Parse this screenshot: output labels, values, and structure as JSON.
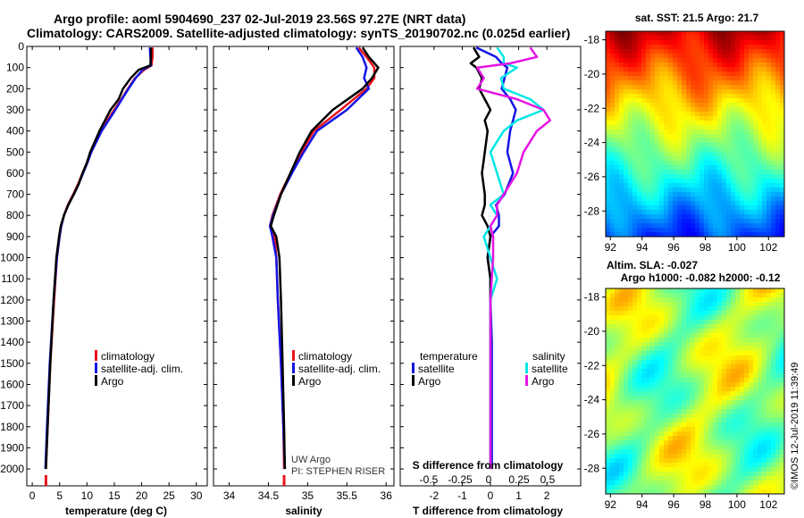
{
  "title_line1": "Argo profile: aoml 5904690_237 02-Jul-2019 23.56S 97.27E (NRT data)",
  "title_line2": "Climatology: CARS2009. Satellite-adjusted climatology: synTS_20190702.nc (0.025d earlier)",
  "sst_title": "sat. SST: 21.5 Argo: 21.7",
  "sla_title1": "Altim. SLA: -0.027",
  "sla_title2": "Argo h1000: -0.082 h2000: -0.12",
  "watermark": "©IMOS 12-Jul-2019 11:39:49",
  "credit1": "UW Argo",
  "credit2": "PI: STEPHEN RISER",
  "colors": {
    "climatology": "#e8141e",
    "satellite": "#1414e6",
    "argo": "#000000",
    "sat_s": "#00e6e6",
    "argo_s": "#e614e6"
  },
  "chart_data": [
    {
      "type": "line",
      "xlabel": "temperature (deg C)",
      "xlim": [
        -1,
        32
      ],
      "ylim": [
        2080,
        0
      ],
      "xticks": [
        "0",
        "5",
        "10",
        "15",
        "20",
        "25",
        "30"
      ],
      "xtick_values": [
        0,
        5,
        10,
        15,
        20,
        25,
        30
      ],
      "yticks": [
        "0",
        "100",
        "200",
        "300",
        "400",
        "500",
        "600",
        "700",
        "800",
        "900",
        "1000",
        "1100",
        "1200",
        "1300",
        "1400",
        "1500",
        "1600",
        "1700",
        "1800",
        "1900",
        "2000"
      ],
      "legend": [
        "climatology",
        "satellite-adj. clim.",
        "Argo"
      ],
      "depth": [
        5,
        50,
        90,
        110,
        150,
        200,
        250,
        300,
        400,
        500,
        550,
        600,
        650,
        700,
        750,
        800,
        850,
        900,
        1000,
        1200,
        1500,
        1800,
        2000
      ],
      "series": [
        {
          "name": "climatology",
          "values": [
            22.0,
            22.0,
            21.8,
            20.5,
            18.8,
            17.5,
            16.3,
            15.0,
            12.5,
            10.7,
            10.0,
            9.2,
            8.4,
            7.5,
            6.5,
            5.8,
            5.3,
            5.0,
            4.5,
            4.0,
            3.3,
            2.8,
            2.5
          ]
        },
        {
          "name": "satellite-adj. clim.",
          "values": [
            21.5,
            21.6,
            21.7,
            20.2,
            18.9,
            17.6,
            16.4,
            15.2,
            12.7,
            10.8,
            10.1,
            9.3,
            8.5,
            7.6,
            6.6,
            5.8,
            5.3,
            5.0,
            4.5,
            3.9,
            3.2,
            2.7,
            2.4
          ]
        },
        {
          "name": "Argo",
          "values": [
            21.7,
            21.7,
            21.6,
            19.5,
            18.0,
            16.6,
            15.8,
            14.3,
            12.3,
            10.6,
            10.0,
            9.2,
            8.5,
            7.6,
            6.6,
            5.8,
            5.2,
            4.9,
            4.4,
            3.9,
            3.3,
            2.8,
            2.5
          ]
        }
      ]
    },
    {
      "type": "line",
      "xlabel": "salinity",
      "xlim": [
        33.8,
        36.1
      ],
      "ylim": [
        2080,
        0
      ],
      "xticks": [
        "34",
        "34.5",
        "35",
        "35.5",
        "36"
      ],
      "xtick_values": [
        34,
        34.5,
        35,
        35.5,
        36
      ],
      "legend": [
        "climatology",
        "satellite-adj. clim.",
        "Argo"
      ],
      "depth": [
        5,
        50,
        100,
        150,
        200,
        300,
        400,
        500,
        600,
        700,
        800,
        850,
        900,
        1000,
        1200,
        1500,
        1800,
        2000
      ],
      "series": [
        {
          "name": "climatology",
          "values": [
            35.65,
            35.75,
            35.85,
            35.85,
            35.75,
            35.42,
            35.08,
            34.92,
            34.78,
            34.65,
            34.55,
            34.52,
            34.58,
            34.6,
            34.62,
            34.66,
            34.69,
            34.7
          ]
        },
        {
          "name": "satellite-adj. clim.",
          "values": [
            35.62,
            35.7,
            35.75,
            35.72,
            35.78,
            35.5,
            35.12,
            34.95,
            34.8,
            34.66,
            34.56,
            34.52,
            34.55,
            34.6,
            34.62,
            34.66,
            34.69,
            34.71
          ]
        },
        {
          "name": "Argo",
          "values": [
            35.7,
            35.78,
            35.9,
            35.82,
            35.7,
            35.32,
            35.05,
            34.9,
            34.78,
            34.66,
            34.57,
            34.53,
            34.6,
            34.64,
            34.66,
            34.68,
            34.7,
            34.71
          ]
        }
      ]
    },
    {
      "type": "line",
      "xlabel": "T difference from climatology",
      "xlabel_top": "S difference from climatology",
      "xlim": [
        -3.2,
        3.2
      ],
      "ylim": [
        2080,
        0
      ],
      "xticks": [
        "-2",
        "-1",
        "0",
        "1",
        "2"
      ],
      "xtick_values": [
        -2,
        -1,
        0,
        1,
        2
      ],
      "s_ticks": [
        "-0.5",
        "-0.25",
        "0",
        "0.25",
        "0.5"
      ],
      "legend_left_title": "temperature",
      "legend_right_title": "salinity",
      "legend": [
        "satellite",
        "Argo"
      ],
      "depth": [
        5,
        50,
        80,
        100,
        150,
        200,
        250,
        300,
        350,
        400,
        500,
        600,
        700,
        750,
        800,
        850,
        900,
        1000,
        1100,
        1200,
        1400,
        1600,
        1800,
        2000
      ],
      "series": [
        {
          "name": "T satellite",
          "values": [
            -0.5,
            0.2,
            0.4,
            0.6,
            0.5,
            0.4,
            0.7,
            0.9,
            0.8,
            0.7,
            0.6,
            0.8,
            0.5,
            0.2,
            0.3,
            0.3,
            0.0,
            -0.1,
            0.0,
            0.0,
            0.05,
            0.05,
            0.05,
            0.05
          ]
        },
        {
          "name": "T Argo",
          "values": [
            -0.6,
            -0.4,
            -0.7,
            -0.5,
            -0.3,
            -0.4,
            -0.2,
            0.0,
            -0.2,
            -0.1,
            -0.2,
            -0.3,
            -0.2,
            -0.2,
            -0.3,
            -0.1,
            0.0,
            -0.1,
            0.0,
            0.0,
            0.0,
            0.0,
            0.0,
            0.0
          ]
        },
        {
          "name": "S satellite",
          "values": [
            0.05,
            0.1,
            0.1,
            0.2,
            0.08,
            0.1,
            0.3,
            0.4,
            0.2,
            0.1,
            0.0,
            0.05,
            0.1,
            0.0,
            0.05,
            0.0,
            -0.05,
            0.0,
            0.05,
            0.0,
            0.0,
            0.0,
            0.0,
            0.0
          ]
        },
        {
          "name": "S Argo",
          "values": [
            0.3,
            0.35,
            0.15,
            -0.1,
            -0.05,
            -0.1,
            0.2,
            0.4,
            0.45,
            0.35,
            0.25,
            0.2,
            0.1,
            0.05,
            0.05,
            0.0,
            0.02,
            0.02,
            0.01,
            0.0,
            0.0,
            0.0,
            0.0,
            0.0
          ]
        }
      ]
    },
    {
      "type": "heatmap",
      "title": "sat. SST: 21.5 Argo: 21.7",
      "xticks": [
        "92",
        "94",
        "96",
        "98",
        "100",
        "102"
      ],
      "yticks": [
        "-18",
        "-20",
        "-22",
        "-24",
        "-26",
        "-28"
      ],
      "xlim": [
        91.7,
        103
      ],
      "ylim": [
        -29.5,
        -17.5
      ]
    },
    {
      "type": "heatmap",
      "title": "Altim. SLA: -0.027",
      "xticks": [
        "92",
        "94",
        "96",
        "98",
        "100",
        "102"
      ],
      "yticks": [
        "-18",
        "-20",
        "-22",
        "-24",
        "-26",
        "-28"
      ],
      "xlim": [
        91.7,
        103
      ],
      "ylim": [
        -29.5,
        -17.5
      ]
    }
  ]
}
